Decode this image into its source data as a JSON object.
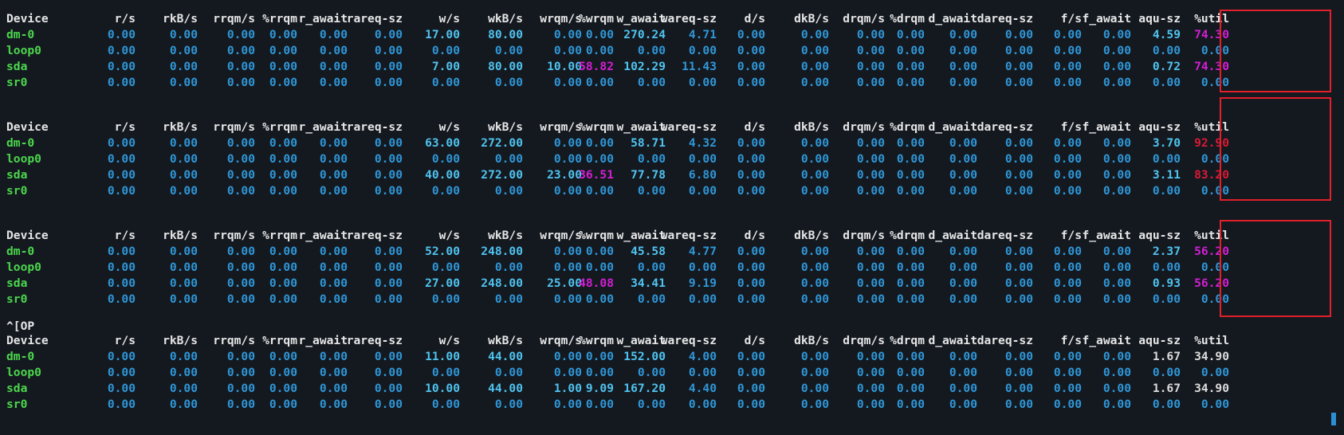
{
  "terminal": {
    "columns": [
      "Device",
      "r/s",
      "rkB/s",
      "rrqm/s",
      "%rrqm",
      "r_await",
      "rareq-sz",
      "w/s",
      "wkB/s",
      "wrqm/s",
      "%wrqm",
      "w_await",
      "wareq-sz",
      "d/s",
      "dkB/s",
      "drqm/s",
      "%drqm",
      "d_await",
      "dareq-sz",
      "f/s",
      "f_await",
      "aqu-sz",
      "%util"
    ],
    "marker_text": "^[OP",
    "colors": {
      "background": "#141920",
      "header": "#e6e6e6",
      "device": "#4cd64c",
      "number_dim": "#2f96d6",
      "number_bright": "#4fc3ef",
      "number_magenta": "#d41ed4",
      "number_red": "#d81a34",
      "highlight_box": "#e0202a"
    },
    "blocks": [
      {
        "rows": [
          {
            "device": "dm-0",
            "values": [
              "0.00",
              "0.00",
              "0.00",
              "0.00",
              "0.00",
              "0.00",
              "17.00",
              "80.00",
              "0.00",
              "0.00",
              "270.24",
              "4.71",
              "0.00",
              "0.00",
              "0.00",
              "0.00",
              "0.00",
              "0.00",
              "0.00",
              "0.00",
              "4.59",
              "74.30"
            ]
          },
          {
            "device": "loop0",
            "values": [
              "0.00",
              "0.00",
              "0.00",
              "0.00",
              "0.00",
              "0.00",
              "0.00",
              "0.00",
              "0.00",
              "0.00",
              "0.00",
              "0.00",
              "0.00",
              "0.00",
              "0.00",
              "0.00",
              "0.00",
              "0.00",
              "0.00",
              "0.00",
              "0.00",
              "0.00"
            ]
          },
          {
            "device": "sda",
            "values": [
              "0.00",
              "0.00",
              "0.00",
              "0.00",
              "0.00",
              "0.00",
              "7.00",
              "80.00",
              "10.00",
              "58.82",
              "102.29",
              "11.43",
              "0.00",
              "0.00",
              "0.00",
              "0.00",
              "0.00",
              "0.00",
              "0.00",
              "0.00",
              "0.72",
              "74.30"
            ]
          },
          {
            "device": "sr0",
            "values": [
              "0.00",
              "0.00",
              "0.00",
              "0.00",
              "0.00",
              "0.00",
              "0.00",
              "0.00",
              "0.00",
              "0.00",
              "0.00",
              "0.00",
              "0.00",
              "0.00",
              "0.00",
              "0.00",
              "0.00",
              "0.00",
              "0.00",
              "0.00",
              "0.00",
              "0.00"
            ]
          }
        ]
      },
      {
        "rows": [
          {
            "device": "dm-0",
            "values": [
              "0.00",
              "0.00",
              "0.00",
              "0.00",
              "0.00",
              "0.00",
              "63.00",
              "272.00",
              "0.00",
              "0.00",
              "58.71",
              "4.32",
              "0.00",
              "0.00",
              "0.00",
              "0.00",
              "0.00",
              "0.00",
              "0.00",
              "0.00",
              "3.70",
              "92.90"
            ]
          },
          {
            "device": "loop0",
            "values": [
              "0.00",
              "0.00",
              "0.00",
              "0.00",
              "0.00",
              "0.00",
              "0.00",
              "0.00",
              "0.00",
              "0.00",
              "0.00",
              "0.00",
              "0.00",
              "0.00",
              "0.00",
              "0.00",
              "0.00",
              "0.00",
              "0.00",
              "0.00",
              "0.00",
              "0.00"
            ]
          },
          {
            "device": "sda",
            "values": [
              "0.00",
              "0.00",
              "0.00",
              "0.00",
              "0.00",
              "0.00",
              "40.00",
              "272.00",
              "23.00",
              "36.51",
              "77.78",
              "6.80",
              "0.00",
              "0.00",
              "0.00",
              "0.00",
              "0.00",
              "0.00",
              "0.00",
              "0.00",
              "3.11",
              "83.20"
            ]
          },
          {
            "device": "sr0",
            "values": [
              "0.00",
              "0.00",
              "0.00",
              "0.00",
              "0.00",
              "0.00",
              "0.00",
              "0.00",
              "0.00",
              "0.00",
              "0.00",
              "0.00",
              "0.00",
              "0.00",
              "0.00",
              "0.00",
              "0.00",
              "0.00",
              "0.00",
              "0.00",
              "0.00",
              "0.00"
            ]
          }
        ]
      },
      {
        "rows": [
          {
            "device": "dm-0",
            "values": [
              "0.00",
              "0.00",
              "0.00",
              "0.00",
              "0.00",
              "0.00",
              "52.00",
              "248.00",
              "0.00",
              "0.00",
              "45.58",
              "4.77",
              "0.00",
              "0.00",
              "0.00",
              "0.00",
              "0.00",
              "0.00",
              "0.00",
              "0.00",
              "2.37",
              "56.20"
            ]
          },
          {
            "device": "loop0",
            "values": [
              "0.00",
              "0.00",
              "0.00",
              "0.00",
              "0.00",
              "0.00",
              "0.00",
              "0.00",
              "0.00",
              "0.00",
              "0.00",
              "0.00",
              "0.00",
              "0.00",
              "0.00",
              "0.00",
              "0.00",
              "0.00",
              "0.00",
              "0.00",
              "0.00",
              "0.00"
            ]
          },
          {
            "device": "sda",
            "values": [
              "0.00",
              "0.00",
              "0.00",
              "0.00",
              "0.00",
              "0.00",
              "27.00",
              "248.00",
              "25.00",
              "48.08",
              "34.41",
              "9.19",
              "0.00",
              "0.00",
              "0.00",
              "0.00",
              "0.00",
              "0.00",
              "0.00",
              "0.00",
              "0.93",
              "56.20"
            ]
          },
          {
            "device": "sr0",
            "values": [
              "0.00",
              "0.00",
              "0.00",
              "0.00",
              "0.00",
              "0.00",
              "0.00",
              "0.00",
              "0.00",
              "0.00",
              "0.00",
              "0.00",
              "0.00",
              "0.00",
              "0.00",
              "0.00",
              "0.00",
              "0.00",
              "0.00",
              "0.00",
              "0.00",
              "0.00"
            ]
          }
        ]
      },
      {
        "rows": [
          {
            "device": "dm-0",
            "values": [
              "0.00",
              "0.00",
              "0.00",
              "0.00",
              "0.00",
              "0.00",
              "11.00",
              "44.00",
              "0.00",
              "0.00",
              "152.00",
              "4.00",
              "0.00",
              "0.00",
              "0.00",
              "0.00",
              "0.00",
              "0.00",
              "0.00",
              "0.00",
              "1.67",
              "34.90"
            ]
          },
          {
            "device": "loop0",
            "values": [
              "0.00",
              "0.00",
              "0.00",
              "0.00",
              "0.00",
              "0.00",
              "0.00",
              "0.00",
              "0.00",
              "0.00",
              "0.00",
              "0.00",
              "0.00",
              "0.00",
              "0.00",
              "0.00",
              "0.00",
              "0.00",
              "0.00",
              "0.00",
              "0.00",
              "0.00"
            ]
          },
          {
            "device": "sda",
            "values": [
              "0.00",
              "0.00",
              "0.00",
              "0.00",
              "0.00",
              "0.00",
              "10.00",
              "44.00",
              "1.00",
              "9.09",
              "167.20",
              "4.40",
              "0.00",
              "0.00",
              "0.00",
              "0.00",
              "0.00",
              "0.00",
              "0.00",
              "0.00",
              "1.67",
              "34.90"
            ]
          },
          {
            "device": "sr0",
            "values": [
              "0.00",
              "0.00",
              "0.00",
              "0.00",
              "0.00",
              "0.00",
              "0.00",
              "0.00",
              "0.00",
              "0.00",
              "0.00",
              "0.00",
              "0.00",
              "0.00",
              "0.00",
              "0.00",
              "0.00",
              "0.00",
              "0.00",
              "0.00",
              "0.00",
              "0.00"
            ]
          }
        ]
      }
    ]
  }
}
